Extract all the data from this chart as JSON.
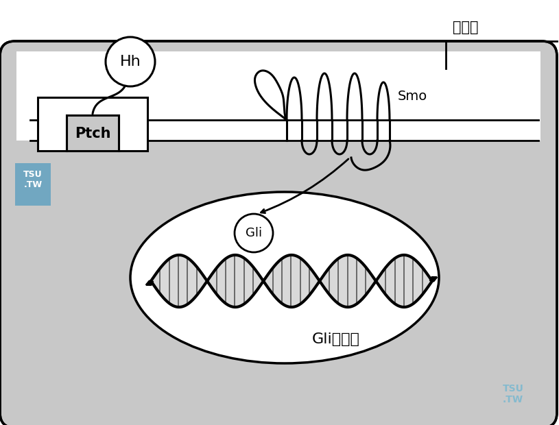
{
  "bg_color": "#c8c8c8",
  "white": "#ffffff",
  "black": "#000000",
  "tsu_blue": "#5b9fc0",
  "tsu_text": "#7ab8d0",
  "labels": {
    "Hh": "Hh",
    "Ptch": "Ptch",
    "Smo": "Smo",
    "Gli": "Gli",
    "huanpamin": "环帕敏",
    "Gli_target": "Gli靶基因"
  },
  "figsize": [
    8.15,
    6.2
  ],
  "dpi": 100
}
